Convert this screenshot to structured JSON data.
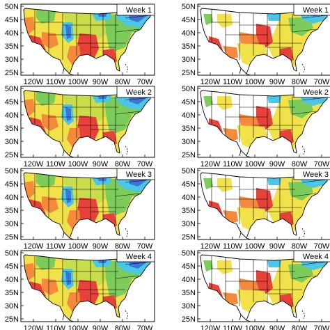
{
  "figure": {
    "panels": [
      {
        "id": "left-week1",
        "column": "left",
        "week_label": "Week 1",
        "style": "full"
      },
      {
        "id": "right-week1",
        "column": "right",
        "week_label": "Week 1",
        "style": "masked"
      },
      {
        "id": "left-week2",
        "column": "left",
        "week_label": "Week 2",
        "style": "full"
      },
      {
        "id": "right-week2",
        "column": "right",
        "week_label": "Week 2",
        "style": "masked"
      },
      {
        "id": "left-week3",
        "column": "left",
        "week_label": "Week 3",
        "style": "full"
      },
      {
        "id": "right-week3",
        "column": "right",
        "week_label": "Week 3",
        "style": "masked"
      },
      {
        "id": "left-week4",
        "column": "left",
        "week_label": "Week 4",
        "style": "full"
      },
      {
        "id": "right-week4",
        "column": "right",
        "week_label": "Week 4",
        "style": "masked"
      }
    ],
    "lat_ticks": [
      "25N",
      "30N",
      "35N",
      "40N",
      "45N",
      "50N"
    ],
    "lon_ticks": [
      "120W",
      "110W",
      "100W",
      "90W",
      "80W",
      "70W"
    ],
    "colors": {
      "red": "#e8413a",
      "orange": "#f58a3c",
      "yellow": "#f2e24a",
      "yellow_green": "#c9dc4a",
      "green": "#7ccc5a",
      "cyan": "#49c6e8",
      "blue": "#3c74d8",
      "navy": "#2a2fa0"
    }
  }
}
